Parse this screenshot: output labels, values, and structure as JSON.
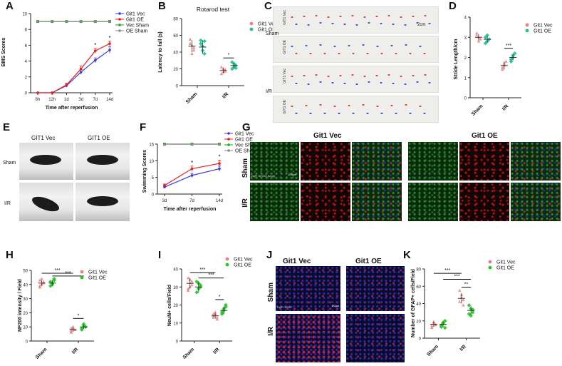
{
  "panel_labels": {
    "A": "A",
    "B": "B",
    "C": "C",
    "D": "D",
    "E": "E",
    "F": "F",
    "G": "G",
    "H": "H",
    "I": "I",
    "J": "J",
    "K": "K"
  },
  "colors": {
    "vec": "#3b3bd6",
    "oe": "#e02020",
    "vec_sham": "#1aa81a",
    "oe_sham": "#888888",
    "vec_dot": "#f08080",
    "oe_dot": "#1fbf8f",
    "oe_green": "#1ec81e"
  },
  "panelC": {
    "sham": "Sham",
    "ir": "I/R",
    "vec": "GIT1 Vec",
    "oe": "GIT1 OE",
    "scale": "2cm"
  },
  "panelE": {
    "col1": "GIT1 Vec",
    "col2": "GIT1 OE",
    "row1": "Sham",
    "row2": "I/R"
  },
  "panelG": {
    "title1": "Git1 Vec",
    "title2": "Git1 OE",
    "row1": "Sham",
    "row2": "I/R",
    "stain": "DAPI NF200 NeuN",
    "scale": "100μm"
  },
  "panelJ": {
    "col1": "Git1 Vec",
    "col2": "Git1 OE",
    "row1": "Sham",
    "row2": "I/R",
    "stain": "DAPI GFAP",
    "scale": "50μm"
  },
  "chart_data": [
    {
      "id": "A",
      "type": "line",
      "xlabel": "Time after reperfusion",
      "ylabel": "BMS Scores",
      "x": [
        "6h",
        "12h",
        "1d",
        "3d",
        "7d",
        "14d"
      ],
      "ylim": [
        0,
        10
      ],
      "yticks": [
        0,
        2,
        4,
        6,
        8,
        10
      ],
      "series": [
        {
          "name": "Git1 Vec",
          "values": [
            0,
            0,
            0.9,
            2.6,
            4.1,
            5.4
          ],
          "err": [
            0,
            0,
            0.2,
            0.3,
            0.3,
            0.4
          ]
        },
        {
          "name": "Git1 OE",
          "values": [
            0,
            0,
            1.0,
            3.0,
            5.3,
            6.2
          ],
          "err": [
            0,
            0,
            0.2,
            0.4,
            0.3,
            0.3
          ]
        },
        {
          "name": "Vec Sham",
          "values": [
            9,
            9,
            9,
            9,
            9,
            9
          ]
        },
        {
          "name": "OE Sham",
          "values": [
            9,
            9,
            9,
            9,
            9,
            9
          ]
        }
      ],
      "annotations": [
        "*",
        "*"
      ],
      "legend": "top-left"
    },
    {
      "id": "B",
      "type": "scatter",
      "title": "Rotarod test",
      "ylabel": "Latency to fall (s)",
      "categories": [
        "Sham",
        "I/R"
      ],
      "ylim": [
        0,
        80
      ],
      "yticks": [
        0,
        20,
        40,
        60,
        80
      ],
      "series": [
        {
          "name": "Git1 Vec",
          "mean": [
            47,
            18
          ],
          "sd": [
            7,
            3
          ],
          "points": [
            [
              55,
              48,
              42,
              50,
              38,
              45
            ],
            [
              14,
              20,
              17,
              22,
              16,
              19
            ]
          ]
        },
        {
          "name": "Git1 OE",
          "mean": [
            46,
            24
          ],
          "sd": [
            8,
            3
          ],
          "points": [
            [
              54,
              47,
              38,
              50,
              42,
              53
            ],
            [
              20,
              26,
              24,
              28,
              22,
              21
            ]
          ]
        }
      ],
      "annotations": [
        "*"
      ],
      "legend": "top-right"
    },
    {
      "id": "D",
      "type": "scatter",
      "ylabel": "Stride Length/cm",
      "categories": [
        "Sham",
        "I/R"
      ],
      "ylim": [
        0,
        4
      ],
      "yticks": [
        0,
        1,
        2,
        3,
        4
      ],
      "series": [
        {
          "name": "Git1 Vec",
          "mean": [
            3.0,
            1.6
          ],
          "sd": [
            0.15,
            0.2
          ],
          "points": [
            [
              3.2,
              3.0,
              2.9,
              3.1,
              2.8
            ],
            [
              1.4,
              1.6,
              1.8,
              1.5,
              1.7
            ]
          ]
        },
        {
          "name": "Git1 OE",
          "mean": [
            2.9,
            2.0
          ],
          "sd": [
            0.15,
            0.15
          ],
          "points": [
            [
              3.0,
              2.8,
              2.9,
              2.7,
              3.1
            ],
            [
              1.9,
              2.0,
              2.2,
              1.8,
              2.1
            ]
          ]
        }
      ],
      "annotations": [
        "***"
      ],
      "legend": "top-right"
    },
    {
      "id": "F",
      "type": "line",
      "xlabel": "Time after reperfusion",
      "ylabel": "Swimming Scores",
      "x": [
        "3d",
        "7d",
        "14d"
      ],
      "ylim": [
        0,
        15
      ],
      "yticks": [
        0,
        5,
        10,
        15
      ],
      "series": [
        {
          "name": "Git1 Vec",
          "values": [
            2.1,
            5.6,
            7.6
          ],
          "err": [
            0.3,
            0.6,
            0.8
          ]
        },
        {
          "name": "Git1 OE",
          "values": [
            2.6,
            7.6,
            9.2
          ],
          "err": [
            0.4,
            0.8,
            1.0
          ]
        },
        {
          "name": "Vec Sham",
          "values": [
            15,
            15,
            15
          ]
        },
        {
          "name": "OE Sham",
          "values": [
            15,
            15,
            15
          ]
        }
      ],
      "annotations": [
        "*",
        "*"
      ],
      "legend": "top-right"
    },
    {
      "id": "H",
      "type": "scatter",
      "ylabel": "NF200 intensity / Field",
      "categories": [
        "Sham",
        "I/R"
      ],
      "ylim": [
        0,
        50
      ],
      "yticks": [
        0,
        10,
        20,
        30,
        40,
        50
      ],
      "series": [
        {
          "name": "Git1 Vec",
          "mean": [
            41,
            8
          ],
          "sd": [
            2,
            1.5
          ],
          "points": [
            [
              43,
              40,
              42,
              39,
              44,
              41,
              38
            ],
            [
              7,
              9,
              8,
              6,
              10,
              8,
              9
            ]
          ]
        },
        {
          "name": "Git1 OE",
          "mean": [
            41,
            10
          ],
          "sd": [
            2,
            1.5
          ],
          "points": [
            [
              42,
              40,
              43,
              39,
              41,
              44
            ],
            [
              9,
              11,
              10,
              8,
              12,
              10
            ]
          ]
        }
      ],
      "annotations": [
        "***",
        "***",
        "*"
      ],
      "legend": "top-right"
    },
    {
      "id": "I",
      "type": "scatter",
      "ylabel": "NeuN+ cells/Field",
      "categories": [
        "Sham",
        "I/R"
      ],
      "ylim": [
        0,
        40
      ],
      "yticks": [
        0,
        10,
        20,
        30,
        40
      ],
      "series": [
        {
          "name": "Git1 Vec",
          "mean": [
            32,
            14
          ],
          "sd": [
            3,
            1.5
          ],
          "points": [
            [
              35,
              30,
              33,
              29,
              34,
              31,
              28
            ],
            [
              13,
              15,
              12,
              14,
              16,
              13,
              15
            ]
          ]
        },
        {
          "name": "Git1 OE",
          "mean": [
            30,
            17
          ],
          "sd": [
            3,
            2
          ],
          "points": [
            [
              33,
              29,
              31,
              27,
              32,
              30
            ],
            [
              16,
              18,
              20,
              15,
              17,
              19
            ]
          ]
        }
      ],
      "annotations": [
        "***",
        "***",
        "*"
      ],
      "legend": "top-right"
    },
    {
      "id": "K",
      "type": "scatter",
      "ylabel": "Number of GFAP+ cells/Field",
      "categories": [
        "Sham",
        "I/R"
      ],
      "ylim": [
        0,
        80
      ],
      "yticks": [
        0,
        20,
        40,
        60,
        80
      ],
      "series": [
        {
          "name": "Git1 Vec",
          "mean": [
            16,
            46
          ],
          "sd": [
            3,
            6
          ],
          "points": [
            [
              14,
              18,
              16,
              12,
              19,
              15
            ],
            [
              42,
              50,
              38,
              55,
              47,
              44
            ]
          ]
        },
        {
          "name": "Git1 OE",
          "mean": [
            16,
            32
          ],
          "sd": [
            3,
            5
          ],
          "points": [
            [
              13,
              17,
              20,
              15,
              18,
              12
            ],
            [
              28,
              34,
              30,
              38,
              26,
              33
            ]
          ]
        }
      ],
      "annotations": [
        "***",
        "***",
        "**"
      ],
      "legend": "top-right"
    }
  ]
}
